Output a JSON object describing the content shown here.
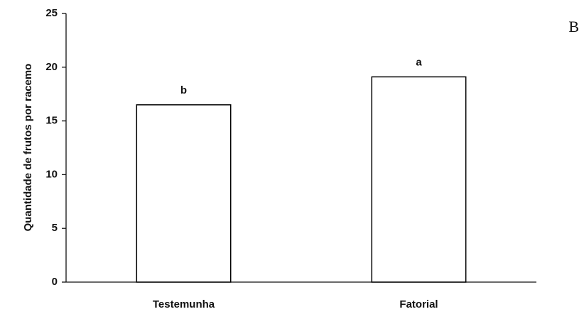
{
  "chart_data": {
    "type": "bar",
    "panel_label": "B",
    "ylabel": "Quantidade de frutos por racemo",
    "categories": [
      "Testemunha",
      "Fatorial"
    ],
    "values": [
      16.5,
      19.1
    ],
    "annotations": [
      "b",
      "a"
    ],
    "color": "#ffffff",
    "edgecolor": "#000000",
    "ylim": [
      0,
      25
    ],
    "yticks": [
      0,
      5,
      10,
      15,
      20,
      25
    ],
    "grid": false
  }
}
